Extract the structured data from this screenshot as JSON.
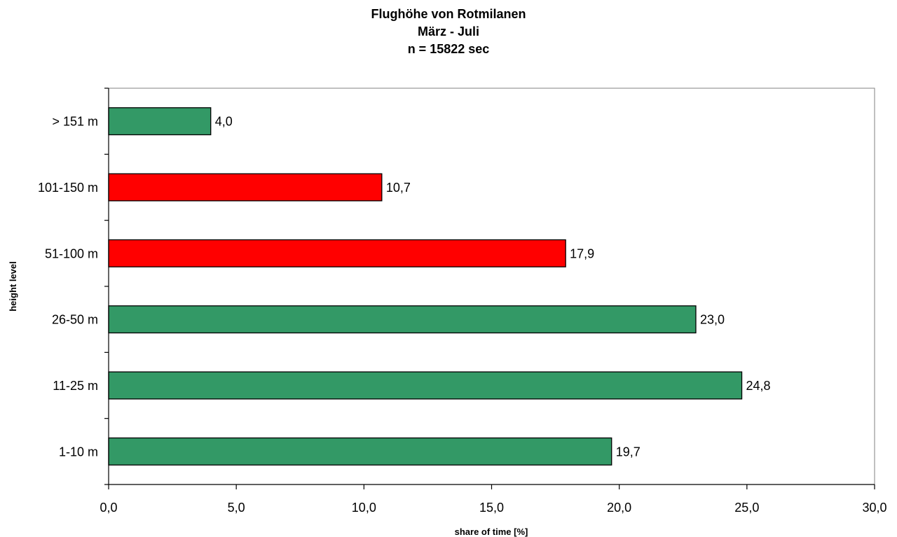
{
  "chart_data": {
    "type": "bar",
    "orientation": "horizontal",
    "title": [
      "Flughöhe von Rotmilanen",
      "März - Juli",
      "n = 15822 sec"
    ],
    "xlabel": "share of time [%]",
    "ylabel": "height level",
    "xlim": [
      0,
      30
    ],
    "x_ticks": [
      "0,0",
      "5,0",
      "10,0",
      "15,0",
      "20,0",
      "25,0",
      "30,0"
    ],
    "x_tick_values": [
      0,
      5,
      10,
      15,
      20,
      25,
      30
    ],
    "grid": false,
    "legend": "none",
    "categories": [
      "> 151 m",
      "101-150 m",
      "51-100 m",
      "26-50 m",
      "11-25 m",
      "1-10 m"
    ],
    "values": [
      4.0,
      10.7,
      17.9,
      23.0,
      24.8,
      19.7
    ],
    "value_labels": [
      "4,0",
      "10,7",
      "17,9",
      "23,0",
      "24,8",
      "19,7"
    ],
    "bar_colors": [
      "#339966",
      "#ff0000",
      "#ff0000",
      "#339966",
      "#339966",
      "#339966"
    ],
    "colors": {
      "green": "#339966",
      "red": "#ff0000",
      "axis": "#000000",
      "plot_border": "#808080"
    }
  }
}
